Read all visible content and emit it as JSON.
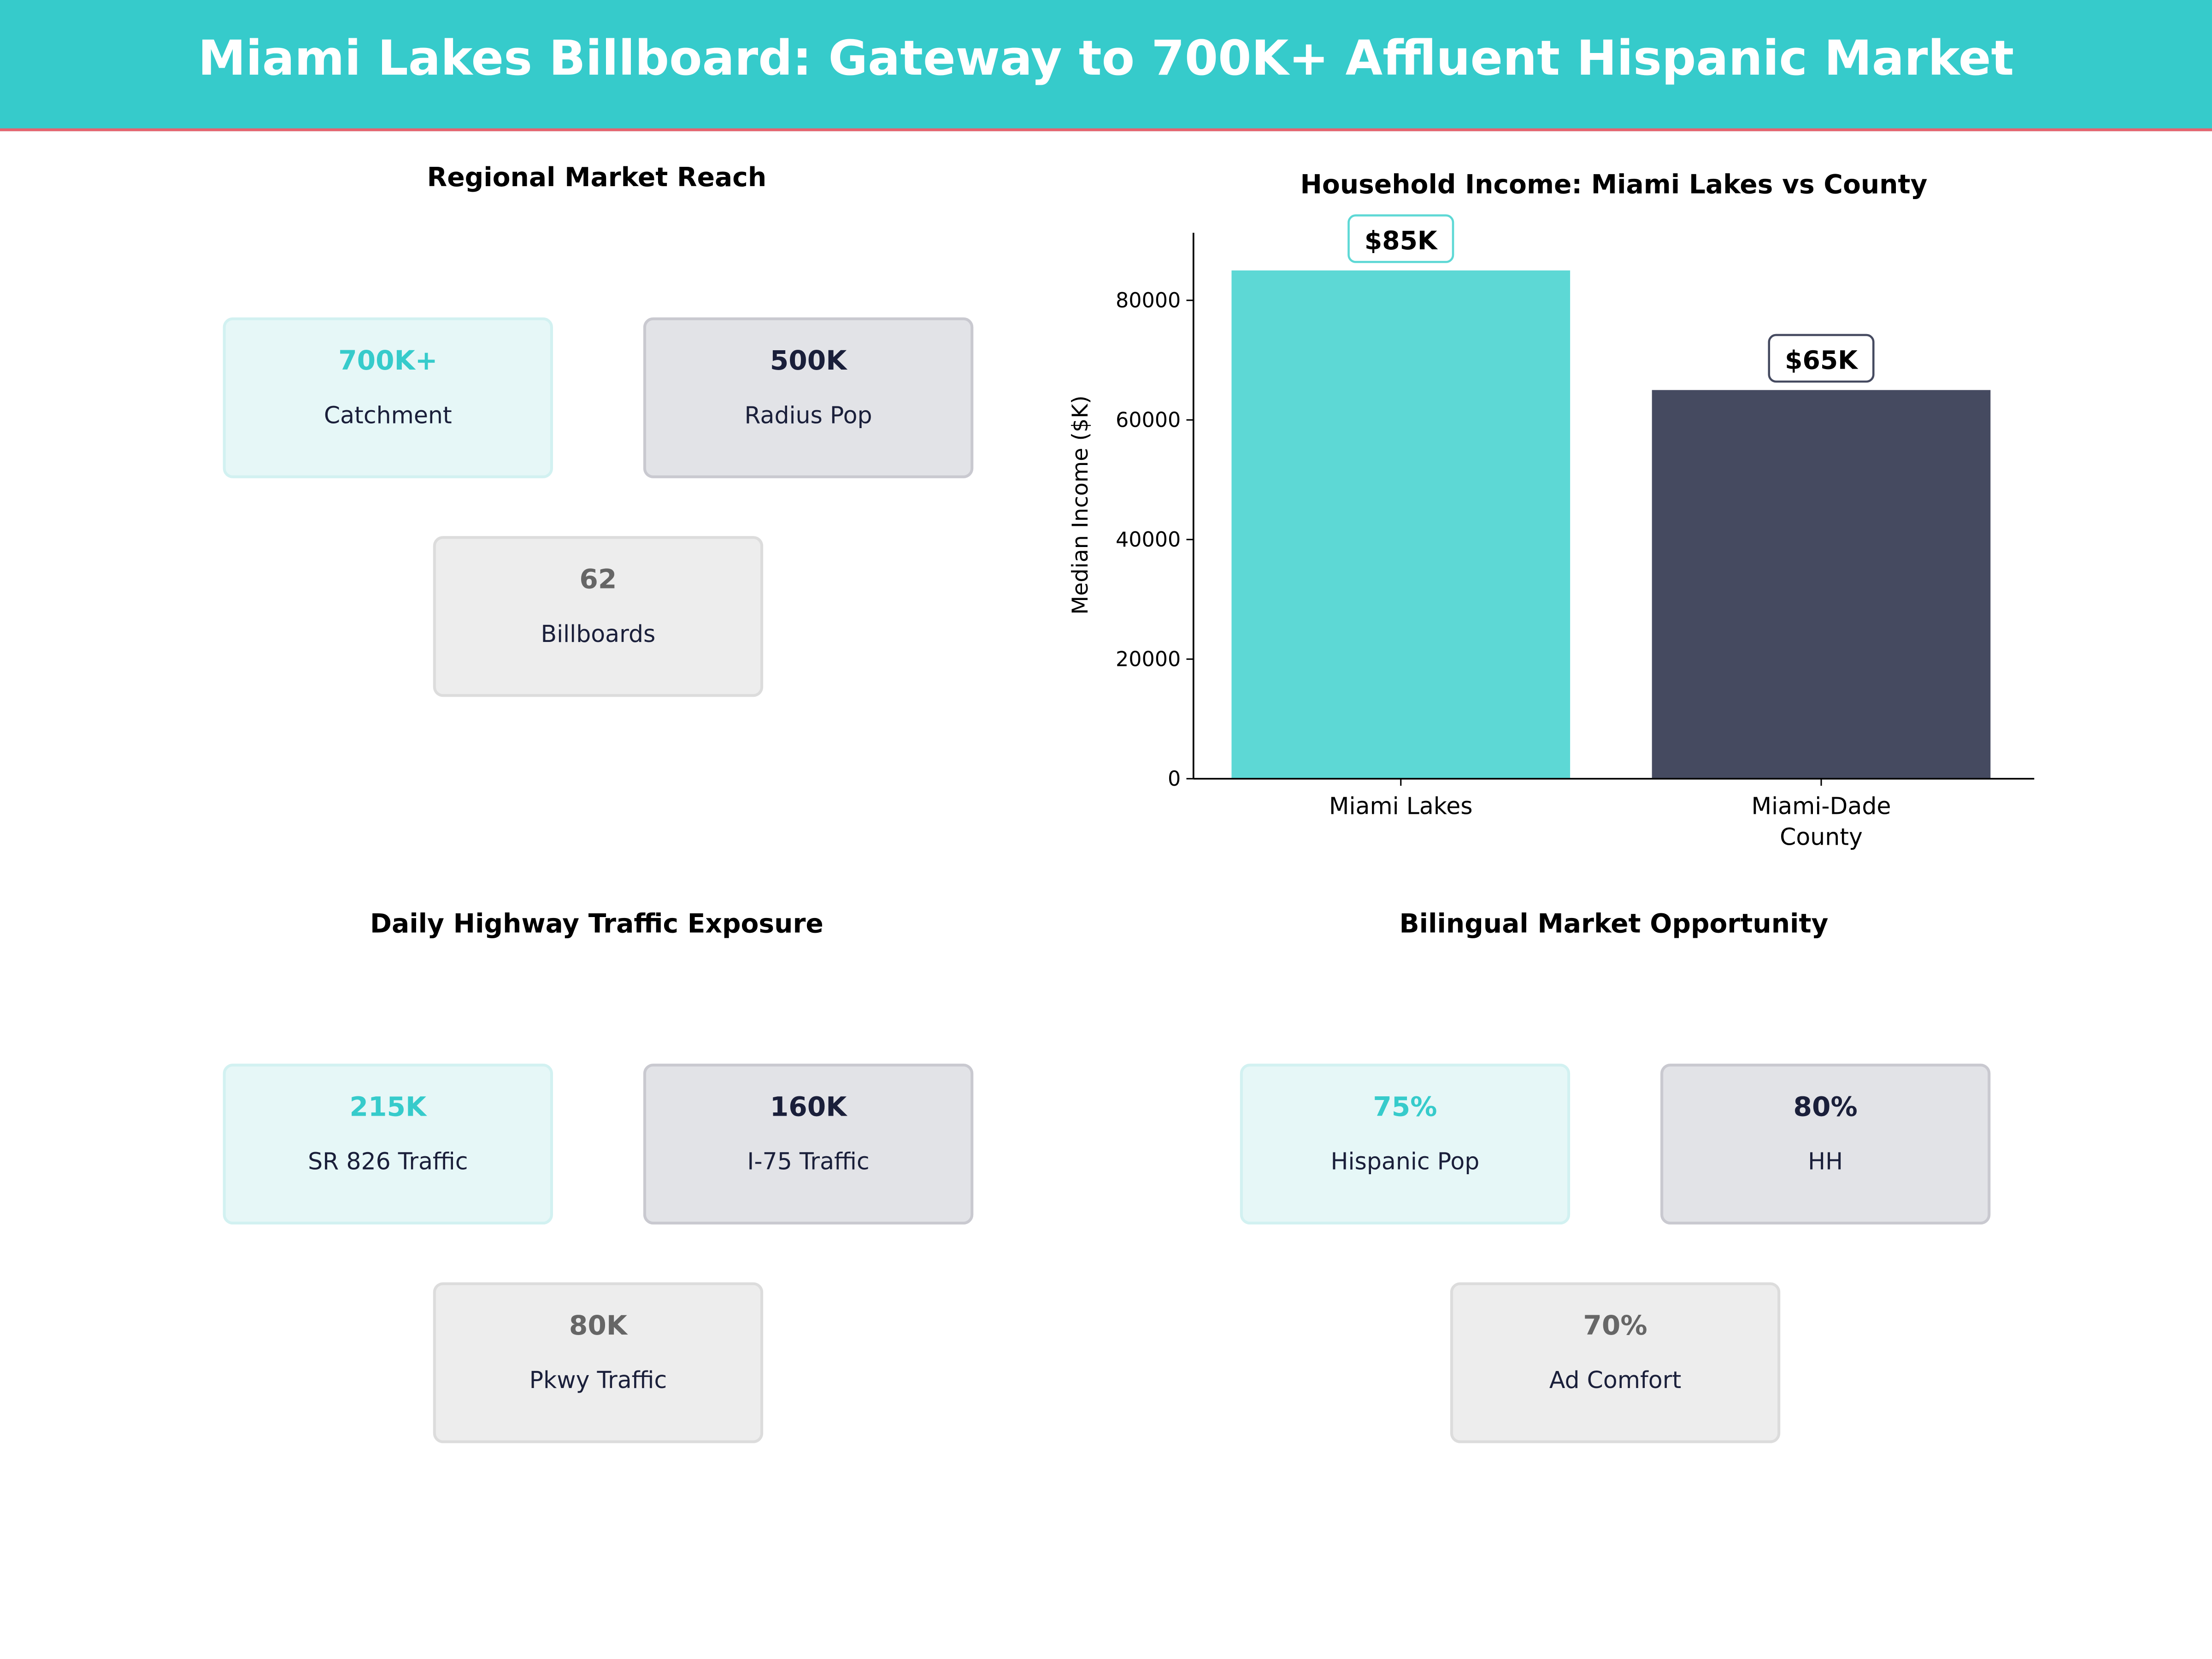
{
  "title": "Miami Lakes Billboard: Gateway to 700K+ Affluent Hispanic Market",
  "colors": {
    "header": "#36cbcb",
    "accent_line": "#e8636f",
    "teal": "#5dd8d5",
    "navy": "#454a60"
  },
  "panels": [
    {
      "title": "Regional Market Reach",
      "cards": [
        {
          "value": "700K+",
          "label": "Catchment"
        },
        {
          "value": "500K",
          "label": "Radius Pop"
        },
        {
          "value": "62",
          "label": "Billboards"
        }
      ]
    },
    {
      "title": "Daily Highway Traffic Exposure",
      "cards": [
        {
          "value": "215K",
          "label": "SR 826  Traffic"
        },
        {
          "value": "160K",
          "label": "I-75  Traffic"
        },
        {
          "value": "80K",
          "label": "Pkwy Traffic"
        }
      ]
    },
    {
      "title": "Bilingual Market Opportunity",
      "cards": [
        {
          "value": "75%",
          "label": "Hispanic Pop"
        },
        {
          "value": "80%",
          "label": "HH"
        },
        {
          "value": "70%",
          "label": "Ad Comfort"
        }
      ]
    }
  ],
  "chart_data": {
    "type": "bar",
    "title": "Household Income: Miami Lakes vs County",
    "categories": [
      "Miami Lakes",
      "Miami-Dade County"
    ],
    "category_lines": [
      [
        "Miami Lakes"
      ],
      [
        "Miami-Dade",
        "County"
      ]
    ],
    "values": [
      85000,
      65000
    ],
    "data_labels": [
      "$85K",
      "$65K"
    ],
    "bar_colors": [
      "#5dd8d5",
      "#454a60"
    ],
    "xlabel": "",
    "ylabel": "Median Income ($K)",
    "ylim": [
      0,
      91300
    ],
    "yticks": [
      0,
      20000,
      40000,
      60000,
      80000
    ],
    "grid": false
  }
}
